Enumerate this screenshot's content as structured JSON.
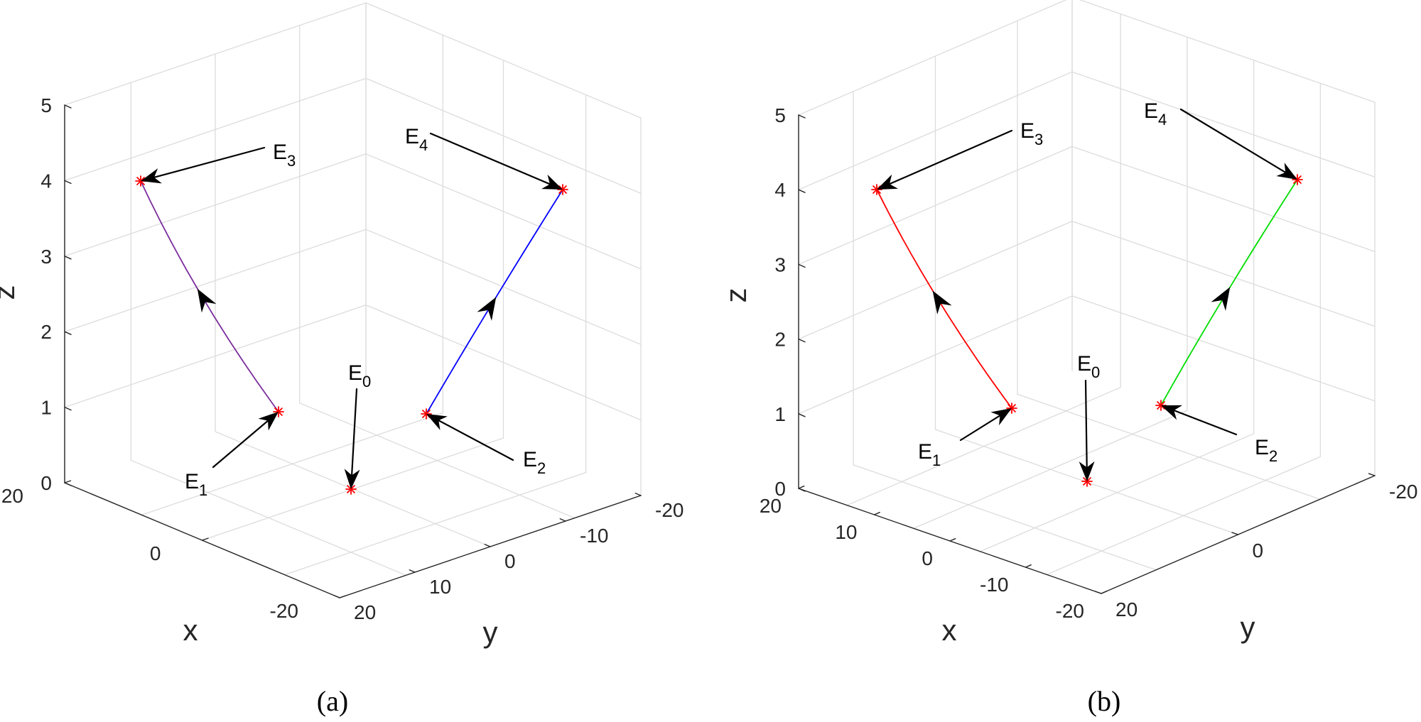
{
  "chart_data": [
    {
      "panel": "(a)",
      "type": "line3d",
      "caption": "(a)",
      "xlabel": "x",
      "ylabel": "y",
      "zlabel": "z",
      "zlim": [
        0,
        5
      ],
      "xticks": [
        "20",
        "0",
        "-20"
      ],
      "yticks": [
        "20",
        "10",
        "0",
        "-10",
        "-20"
      ],
      "zticks": [
        "0",
        "1",
        "2",
        "3",
        "4",
        "5"
      ],
      "grid": true,
      "points": [
        {
          "label": "E",
          "sub": "0",
          "z": 0
        },
        {
          "label": "E",
          "sub": "1",
          "z": 1
        },
        {
          "label": "E",
          "sub": "2",
          "z": 1
        },
        {
          "label": "E",
          "sub": "3",
          "z": 4
        },
        {
          "label": "E",
          "sub": "4",
          "z": 4
        }
      ],
      "series": [
        {
          "from": "E1",
          "to": "E3",
          "color": "#7B2D9E"
        },
        {
          "from": "E2",
          "to": "E4",
          "color": "#0000FF"
        }
      ],
      "marker_color": "#FF0000"
    },
    {
      "panel": "(b)",
      "type": "line3d",
      "caption": "(b)",
      "xlabel": "x",
      "ylabel": "y",
      "zlabel": "z",
      "zlim": [
        0,
        5
      ],
      "xticks": [
        "20",
        "10",
        "0",
        "-10",
        "-20"
      ],
      "yticks": [
        "20",
        "0",
        "-20"
      ],
      "zticks": [
        "0",
        "1",
        "2",
        "3",
        "4",
        "5"
      ],
      "grid": true,
      "points": [
        {
          "label": "E",
          "sub": "0",
          "z": 0
        },
        {
          "label": "E",
          "sub": "1",
          "z": 1
        },
        {
          "label": "E",
          "sub": "2",
          "z": 1
        },
        {
          "label": "E",
          "sub": "3",
          "z": 4
        },
        {
          "label": "E",
          "sub": "4",
          "z": 4
        }
      ],
      "series": [
        {
          "from": "E1",
          "to": "E3",
          "color": "#FF0000"
        },
        {
          "from": "E2",
          "to": "E4",
          "color": "#00DD00"
        }
      ],
      "marker_color": "#FF0000"
    }
  ]
}
